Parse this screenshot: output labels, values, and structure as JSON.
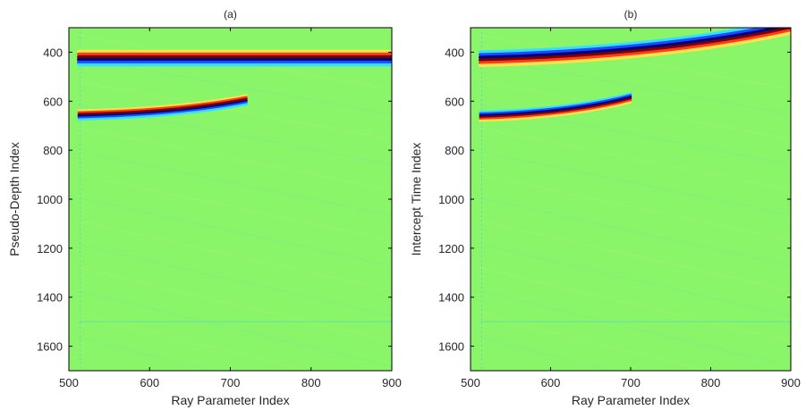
{
  "chart_data": [
    {
      "type": "heatmap",
      "title": "(a)",
      "xlabel": "Ray Parameter Index",
      "ylabel": "Pseudo-Depth Index",
      "xlim": [
        500,
        900
      ],
      "ylim": [
        1700,
        300
      ],
      "y_reversed": true,
      "xticks": [
        500,
        600,
        700,
        800,
        900
      ],
      "yticks": [
        400,
        600,
        800,
        1000,
        1200,
        1400,
        1600
      ],
      "grid": false,
      "legend": "none",
      "background_color": "#8BF56A",
      "colormap": "jet",
      "events": [
        {
          "kind": "flat",
          "x_start": 512,
          "x_end": 900,
          "y": 430,
          "polarity": "red-over-blue",
          "thickness": 3
        },
        {
          "kind": "curved",
          "x_start": 512,
          "x_end": 720,
          "y_at_start": 660,
          "y_at_end": 598,
          "polarity": "red-over-blue",
          "thickness": 2
        },
        {
          "kind": "faint",
          "x_start": 512,
          "x_end": 900,
          "y": 1500
        }
      ]
    },
    {
      "type": "heatmap",
      "title": "(b)",
      "xlabel": "Ray Parameter Index",
      "ylabel": "Intercept Time Index",
      "xlim": [
        500,
        900
      ],
      "ylim": [
        1700,
        300
      ],
      "y_reversed": true,
      "xticks": [
        500,
        600,
        700,
        800,
        900
      ],
      "yticks": [
        400,
        600,
        800,
        1000,
        1200,
        1400,
        1600
      ],
      "grid": false,
      "legend": "none",
      "background_color": "#8BF56A",
      "colormap": "jet",
      "events": [
        {
          "kind": "curved",
          "x_start": 512,
          "x_end": 900,
          "y_at_start": 432,
          "y_at_end": 300,
          "polarity": "blue-over-red",
          "thickness": 3
        },
        {
          "kind": "curved",
          "x_start": 512,
          "x_end": 700,
          "y_at_start": 665,
          "y_at_end": 590,
          "polarity": "blue-over-red",
          "thickness": 2
        },
        {
          "kind": "faint",
          "x_start": 512,
          "x_end": 900,
          "y": 1500
        }
      ]
    }
  ]
}
